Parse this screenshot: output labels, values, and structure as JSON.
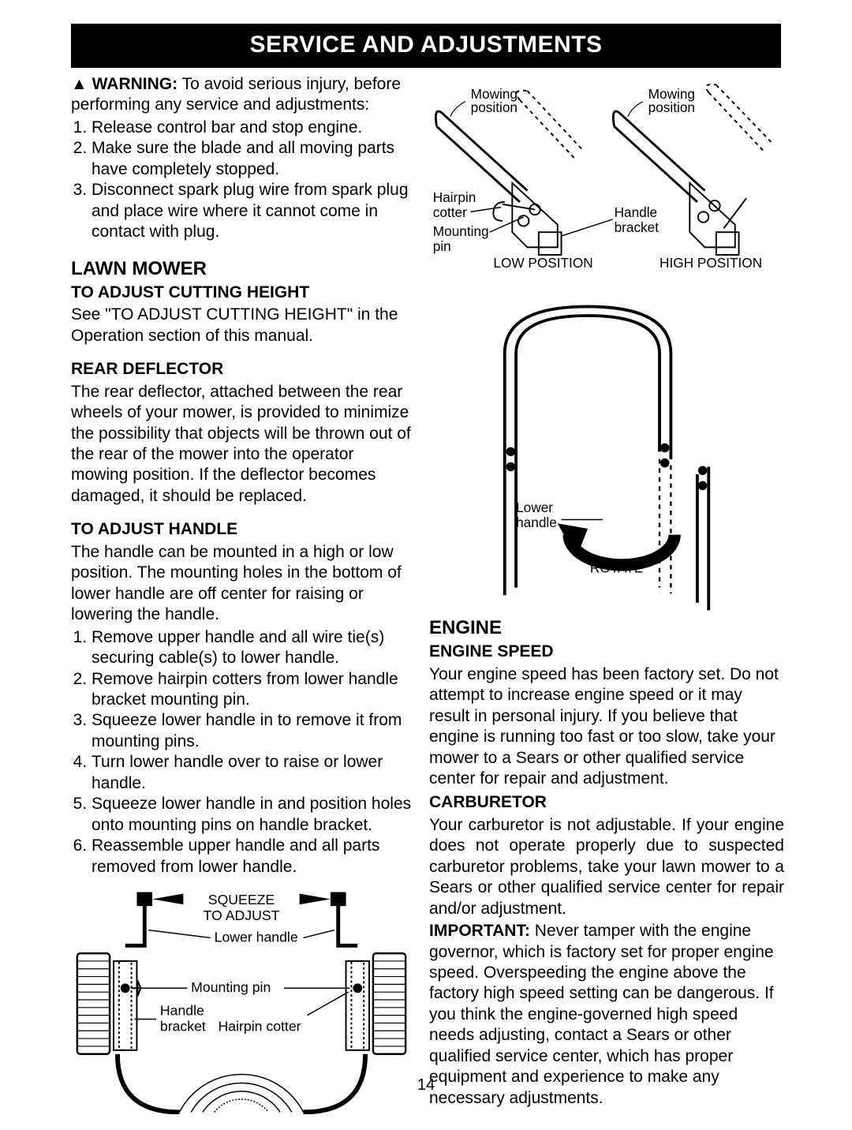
{
  "title": "SERVICE AND ADJUSTMENTS",
  "warning": {
    "icon": "▲",
    "label": "WARNING:",
    "text": "To avoid serious injury, before performing any service and adjustments:",
    "steps": [
      "Release control bar and stop engine.",
      "Make sure the blade and all moving parts have completely stopped.",
      "Disconnect spark plug wire from spark plug and place wire where it cannot come in contact with plug."
    ]
  },
  "lawn_mower": {
    "heading": "LAWN MOWER",
    "cutting_height": {
      "heading": "TO ADJUST CUTTING HEIGHT",
      "text": "See \"TO ADJUST CUTTING HEIGHT\" in the Operation section of this manual."
    },
    "rear_deflector": {
      "heading": "REAR DEFLECTOR",
      "text": "The rear deflector, attached between the rear wheels of your mower, is provided to minimize the possibility that objects will be thrown out of the rear of the mower into the operator mowing position. If the deflector becomes damaged, it should be replaced."
    },
    "adjust_handle": {
      "heading": "TO ADJUST HANDLE",
      "intro": "The handle can be mounted in a high or low position. The mounting holes in the bottom of lower handle are off center for raising or lowering the handle.",
      "steps": [
        "Remove upper handle and all wire tie(s) securing cable(s) to lower handle.",
        "Remove hairpin cotters from lower handle bracket mounting pin.",
        "Squeeze lower handle in to remove it from mounting pins.",
        "Turn lower handle over to raise or lower handle.",
        "Squeeze lower handle in and position holes onto mounting pins on handle bracket.",
        "Reassemble upper handle and all parts removed from lower handle."
      ]
    }
  },
  "engine": {
    "heading": "ENGINE",
    "speed": {
      "heading": "ENGINE SPEED",
      "text": "Your engine speed has been factory set. Do not attempt to increase engine speed or it may result in personal injury. If you believe that engine is running too fast or too slow, take your mower to a Sears or other qualified service center for repair and adjustment."
    },
    "carburetor": {
      "heading": "CARBURETOR",
      "text": "Your carburetor is not adjustable. If your engine does not operate properly due to suspected carburetor problems, take your lawn mower to a Sears or other qualified service center for repair and/or adjustment.",
      "important_label": "IMPORTANT:",
      "important_text": "Never tamper with the engine governor, which is factory set for proper engine speed. Overspeeding the engine above the factory high speed setting can be dangerous. If you think the engine-governed high speed needs adjusting, contact a Sears or other qualified service center, which has proper equipment and experience to make any necessary adjustments."
    }
  },
  "fig1_labels": {
    "mowing_position_l": "Mowing position",
    "mowing_position_r": "Mowing position",
    "hairpin_cotter": "Hairpin cotter",
    "mounting_pin": "Mounting pin",
    "handle_bracket": "Handle bracket",
    "low_position": "LOW POSITION",
    "high_position": "HIGH POSITION"
  },
  "fig2_labels": {
    "lower_handle": "Lower handle",
    "rotate": "ROTATE"
  },
  "fig3_labels": {
    "squeeze": "SQUEEZE TO ADJUST",
    "lower_handle": "Lower handle",
    "mounting_pin": "Mounting pin",
    "handle_bracket": "Handle bracket",
    "hairpin_cotter": "Hairpin cotter"
  },
  "page_number": "14",
  "colors": {
    "bg": "#ffffff",
    "fg": "#000000",
    "titlebar_bg": "#000000",
    "titlebar_fg": "#ffffff"
  },
  "typography": {
    "body_fontsize": 21,
    "title_fontsize": 30,
    "h1_fontsize": 24,
    "label_fontsize": 18,
    "font_family": "Arial"
  }
}
